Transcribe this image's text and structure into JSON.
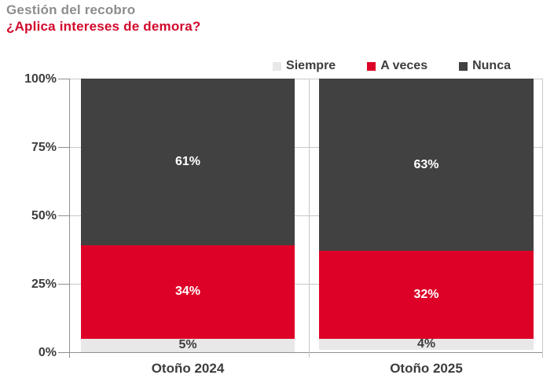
{
  "header": {
    "kicker": "Gestión del recobro",
    "title": "¿Aplica intereses de demora?"
  },
  "colors": {
    "background": "#ffffff",
    "kicker_gray": "#8d8d8d",
    "title_red": "#d2092c",
    "axis_line": "#8f8f8f",
    "gridline": "#c7c7c7",
    "text_dark": "#3d3d3d"
  },
  "chart_data": {
    "type": "bar",
    "variant": "stacked-100-percent",
    "title": "¿Aplica intereses de demora?",
    "kicker": "Gestión del recobro",
    "categories": [
      "Otoño 2024",
      "Otoño 2025"
    ],
    "series": [
      {
        "name": "Siempre",
        "color": "#e8e8e8",
        "label_color": "#3d3d3d",
        "values": [
          5,
          4
        ],
        "labels": [
          "5%",
          "4%"
        ]
      },
      {
        "name": "A veces",
        "color": "#de0127",
        "label_color": "#ffffff",
        "values": [
          34,
          32
        ],
        "labels": [
          "34%",
          "32%"
        ]
      },
      {
        "name": "Nunca",
        "color": "#414141",
        "label_color": "#ffffff",
        "values": [
          61,
          63
        ],
        "labels": [
          "61%",
          "63%"
        ]
      }
    ],
    "stack_order_top_to_bottom": [
      "Nunca",
      "A veces",
      "Siempre"
    ],
    "xlabel": "",
    "ylabel": "",
    "ylim": [
      0,
      100
    ],
    "yticks": [
      "100%",
      "75%",
      "50%",
      "25%",
      "0%"
    ],
    "value_suffix": "%",
    "grid": true,
    "legend_position": "top-right"
  }
}
